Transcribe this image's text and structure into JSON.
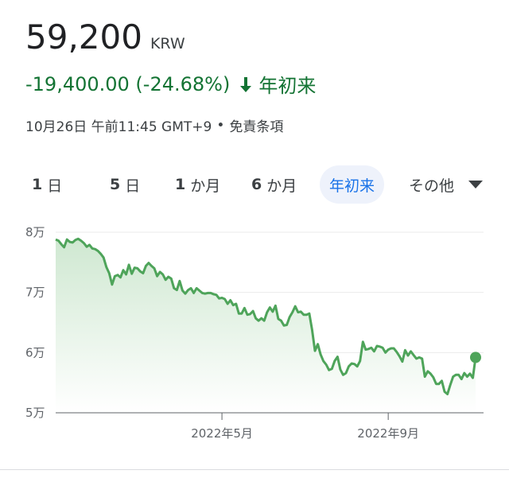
{
  "quote": {
    "price": "59,200",
    "currency": "KRW",
    "change": "-19,400.00 (-24.68%)",
    "direction_icon": "arrow-down-icon",
    "period": "年初来",
    "timestamp": "10月26日 午前11:45 GMT+9",
    "separator": "•",
    "disclaimer": "免責条項"
  },
  "colors": {
    "positive": "#137333",
    "accent": "#1a73e8",
    "line": "#4ea45a"
  },
  "tabs": [
    {
      "num": "1",
      "label": "日"
    },
    {
      "num": "5",
      "label": "日"
    },
    {
      "num": "1",
      "label": "か月"
    },
    {
      "num": "6",
      "label": "か月"
    },
    {
      "num": "",
      "label": "年初来",
      "active": true
    },
    {
      "num": "",
      "label": "その他"
    }
  ],
  "chart_data": {
    "type": "area",
    "ylim": [
      50000,
      80000
    ],
    "yticks": [
      {
        "value": 80000,
        "label": "8万"
      },
      {
        "value": 70000,
        "label": "7万"
      },
      {
        "value": 60000,
        "label": "6万"
      },
      {
        "value": 50000,
        "label": "5万"
      }
    ],
    "xticks": [
      {
        "index": 59,
        "label": "2022年5月"
      },
      {
        "index": 118,
        "label": "2022年9月"
      }
    ],
    "series": [
      {
        "values": [
          78800,
          78600,
          78000,
          77500,
          78800,
          78400,
          78300,
          78700,
          78900,
          78600,
          78200,
          77600,
          77900,
          77300,
          77200,
          76900,
          76400,
          75800,
          74200,
          73200,
          71300,
          72700,
          72900,
          72500,
          73700,
          73000,
          74600,
          73100,
          74100,
          74000,
          73500,
          73200,
          74400,
          74900,
          74400,
          74000,
          72700,
          73400,
          73000,
          72100,
          72600,
          72300,
          70700,
          70400,
          71900,
          70300,
          69800,
          70400,
          70700,
          69900,
          70700,
          70300,
          69900,
          69800,
          69900,
          69900,
          69700,
          69600,
          69000,
          69100,
          68900,
          68100,
          68700,
          67900,
          68100,
          66500,
          66500,
          67400,
          66300,
          66400,
          66900,
          65700,
          65300,
          65700,
          65300,
          66700,
          67500,
          66800,
          67800,
          65600,
          65300,
          64500,
          64600,
          65900,
          66700,
          67700,
          66700,
          66800,
          66300,
          66300,
          66500,
          63700,
          60300,
          61400,
          59700,
          58600,
          58000,
          57100,
          57300,
          58600,
          59300,
          57200,
          56300,
          56600,
          57700,
          58200,
          58100,
          57700,
          58600,
          61800,
          60500,
          60600,
          60800,
          60200,
          61100,
          61000,
          60800,
          60000,
          60500,
          60700,
          60700,
          60100,
          59400,
          58500,
          60400,
          59500,
          60200,
          59600,
          59000,
          59200,
          59000,
          56000,
          56900,
          56500,
          55900,
          54800,
          54800,
          55300,
          53500,
          53100,
          54600,
          56000,
          56300,
          56300,
          55600,
          56600,
          56000,
          56500,
          55800,
          59200
        ]
      }
    ]
  }
}
